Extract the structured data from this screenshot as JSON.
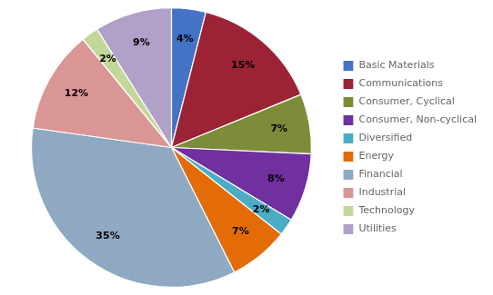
{
  "chart_data": {
    "type": "pie",
    "categories": [
      "Basic Materials",
      "Communications",
      "Consumer, Cyclical",
      "Consumer, Non-cyclical",
      "Diversified",
      "Energy",
      "Financial",
      "Industrial",
      "Technology",
      "Utilities"
    ],
    "values": [
      4,
      15,
      7,
      8,
      2,
      7,
      35,
      12,
      2,
      9
    ],
    "value_labels": [
      "4%",
      "15%",
      "7%",
      "8%",
      "2%",
      "7%",
      "35%",
      "12%",
      "2%",
      "9%"
    ],
    "colors": [
      "#4472C4",
      "#9B2335",
      "#7E8C3A",
      "#7030A0",
      "#4BACC6",
      "#E36C09",
      "#8EA9C1",
      "#D99694",
      "#C4D79B",
      "#B1A0C7"
    ],
    "data_labels": true,
    "legend": "right"
  }
}
